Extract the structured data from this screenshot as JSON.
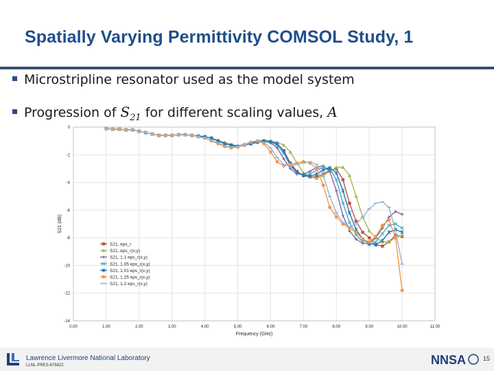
{
  "slide": {
    "title": "Spatially Varying Permittivity COMSOL Study, 1",
    "bullet1": "Microstripline resonator used as the model system",
    "bullet2_text": "Progression of",
    "bullet2_s": "S",
    "bullet2_sub": "21",
    "bullet2_mid": "for different scaling values,",
    "bullet2_var": "A",
    "page_number": "15"
  },
  "footer": {
    "lab_name": "Lawrence Livermore National Laboratory",
    "lab_code": "LLNL-PRES-676822",
    "logo_right_text": "NNSA"
  },
  "chart_data": {
    "type": "line",
    "xlabel": "Frequency (GHz)",
    "ylabel": "S21 (dB)",
    "xlim": [
      0,
      11
    ],
    "ylim": [
      -14,
      0
    ],
    "xticks": [
      "0.00",
      "1.00",
      "2.00",
      "3.00",
      "4.00",
      "5.00",
      "6.00",
      "7.00",
      "8.00",
      "9.00",
      "10.00",
      "11.00"
    ],
    "yticks": [
      "0",
      "-2",
      "-4",
      "-6",
      "-8",
      "-10",
      "-12",
      "-14"
    ],
    "grid": true,
    "legend_position": "lower-left",
    "x": [
      1.0,
      1.2,
      1.4,
      1.6,
      1.8,
      2.0,
      2.2,
      2.4,
      2.6,
      2.8,
      3.0,
      3.2,
      3.4,
      3.6,
      3.8,
      4.0,
      4.2,
      4.4,
      4.6,
      4.8,
      5.0,
      5.2,
      5.4,
      5.6,
      5.8,
      6.0,
      6.2,
      6.4,
      6.6,
      6.8,
      7.0,
      7.2,
      7.4,
      7.6,
      7.8,
      8.0,
      8.2,
      8.4,
      8.6,
      8.8,
      9.0,
      9.2,
      9.4,
      9.6,
      9.8,
      10.0
    ],
    "series": [
      {
        "name": "S21, eps_r",
        "color": "#c0504d",
        "marker": "square",
        "values": [
          -0.1,
          -0.15,
          -0.15,
          -0.2,
          -0.2,
          -0.3,
          -0.4,
          -0.5,
          -0.6,
          -0.6,
          -0.6,
          -0.55,
          -0.55,
          -0.6,
          -0.65,
          -0.7,
          -0.8,
          -1.0,
          -1.2,
          -1.3,
          -1.4,
          -1.3,
          -1.2,
          -1.1,
          -1.0,
          -1.05,
          -1.2,
          -1.7,
          -2.6,
          -3.2,
          -3.5,
          -3.6,
          -3.6,
          -3.4,
          -3.1,
          -3.0,
          -3.8,
          -5.5,
          -6.8,
          -7.6,
          -8.0,
          -8.5,
          -8.6,
          -8.3,
          -7.8,
          -7.9
        ]
      },
      {
        "name": "S21, eps_r(x,y)",
        "color": "#9bbb59",
        "marker": "triangle",
        "values": [
          -0.1,
          -0.15,
          -0.15,
          -0.2,
          -0.2,
          -0.3,
          -0.4,
          -0.5,
          -0.6,
          -0.6,
          -0.6,
          -0.55,
          -0.55,
          -0.6,
          -0.65,
          -0.7,
          -0.8,
          -0.95,
          -1.1,
          -1.25,
          -1.35,
          -1.3,
          -1.15,
          -1.0,
          -0.95,
          -1.0,
          -1.1,
          -1.3,
          -1.8,
          -2.6,
          -3.3,
          -3.6,
          -3.7,
          -3.5,
          -3.2,
          -2.9,
          -2.9,
          -3.5,
          -5.0,
          -6.5,
          -7.5,
          -8.0,
          -8.3,
          -8.3,
          -8.0,
          -7.8
        ]
      },
      {
        "name": "S21, 1.1 eps_r(x,y)",
        "color": "#8064a2",
        "marker": "cross",
        "values": [
          -0.1,
          -0.15,
          -0.15,
          -0.2,
          -0.2,
          -0.3,
          -0.4,
          -0.5,
          -0.6,
          -0.6,
          -0.6,
          -0.55,
          -0.55,
          -0.6,
          -0.65,
          -0.7,
          -0.8,
          -1.0,
          -1.2,
          -1.3,
          -1.35,
          -1.25,
          -1.1,
          -1.0,
          -1.0,
          -1.15,
          -1.5,
          -2.3,
          -3.0,
          -3.4,
          -3.4,
          -3.2,
          -2.9,
          -2.8,
          -3.2,
          -4.6,
          -6.4,
          -7.5,
          -8.1,
          -8.4,
          -8.4,
          -8.0,
          -7.3,
          -6.5,
          -6.1,
          -6.3
        ]
      },
      {
        "name": "S21, 1.05 eps_r(x,y)",
        "color": "#4bacc6",
        "marker": "x",
        "values": [
          -0.1,
          -0.15,
          -0.15,
          -0.2,
          -0.2,
          -0.3,
          -0.4,
          -0.5,
          -0.6,
          -0.6,
          -0.6,
          -0.55,
          -0.55,
          -0.6,
          -0.65,
          -0.7,
          -0.8,
          -1.0,
          -1.2,
          -1.3,
          -1.4,
          -1.3,
          -1.15,
          -1.05,
          -1.0,
          -1.1,
          -1.3,
          -1.9,
          -2.8,
          -3.3,
          -3.5,
          -3.4,
          -3.1,
          -2.9,
          -3.0,
          -3.8,
          -5.5,
          -6.9,
          -7.8,
          -8.3,
          -8.5,
          -8.3,
          -7.7,
          -7.1,
          -7.0,
          -7.3
        ]
      },
      {
        "name": "S21, 1.01 eps_r(x,y)",
        "color": "#1f77b4",
        "marker": "star",
        "values": [
          -0.1,
          -0.15,
          -0.15,
          -0.2,
          -0.2,
          -0.3,
          -0.4,
          -0.5,
          -0.6,
          -0.6,
          -0.6,
          -0.55,
          -0.55,
          -0.6,
          -0.65,
          -0.7,
          -0.8,
          -1.0,
          -1.2,
          -1.3,
          -1.4,
          -1.3,
          -1.2,
          -1.05,
          -1.0,
          -1.05,
          -1.2,
          -1.75,
          -2.7,
          -3.25,
          -3.5,
          -3.55,
          -3.4,
          -3.1,
          -2.95,
          -3.3,
          -4.6,
          -6.2,
          -7.4,
          -8.1,
          -8.4,
          -8.5,
          -8.2,
          -7.6,
          -7.4,
          -7.6
        ]
      },
      {
        "name": "S21, 1.25 eps_r(x,y)",
        "color": "#f79646",
        "marker": "circle",
        "values": [
          -0.1,
          -0.15,
          -0.15,
          -0.2,
          -0.2,
          -0.3,
          -0.4,
          -0.5,
          -0.6,
          -0.6,
          -0.6,
          -0.55,
          -0.55,
          -0.6,
          -0.7,
          -0.8,
          -1.0,
          -1.2,
          -1.4,
          -1.5,
          -1.45,
          -1.3,
          -1.1,
          -1.0,
          -1.2,
          -1.8,
          -2.5,
          -2.8,
          -2.7,
          -2.6,
          -2.5,
          -2.6,
          -3.0,
          -4.2,
          -5.8,
          -6.5,
          -7.0,
          -7.3,
          -7.6,
          -8.1,
          -8.3,
          -7.9,
          -7.1,
          -6.7,
          -8.0,
          -11.8
        ]
      },
      {
        "name": "S21, 1.2 eps_r(x,y)",
        "color": "#95b3d7",
        "marker": "dash",
        "values": [
          -0.1,
          -0.15,
          -0.15,
          -0.2,
          -0.2,
          -0.3,
          -0.4,
          -0.5,
          -0.6,
          -0.6,
          -0.6,
          -0.55,
          -0.55,
          -0.6,
          -0.7,
          -0.8,
          -0.95,
          -1.15,
          -1.35,
          -1.45,
          -1.4,
          -1.25,
          -1.05,
          -1.0,
          -1.1,
          -1.5,
          -2.2,
          -2.7,
          -2.8,
          -2.7,
          -2.6,
          -2.5,
          -2.7,
          -3.5,
          -5.0,
          -6.2,
          -6.9,
          -7.2,
          -7.0,
          -6.5,
          -5.9,
          -5.5,
          -5.4,
          -5.8,
          -7.5,
          -9.9
        ]
      }
    ]
  }
}
